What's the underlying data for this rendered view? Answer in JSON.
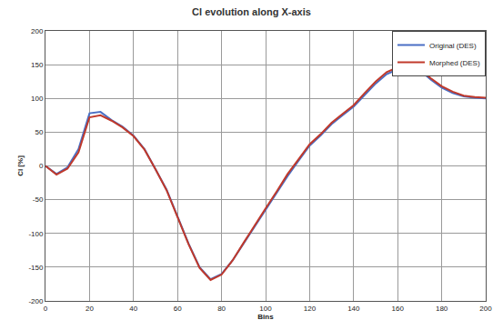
{
  "chart_data": {
    "type": "line",
    "title": "Cl evolution along X-axis",
    "x_label": "Bins",
    "y_label": "Cl [%]",
    "x": [
      0,
      5,
      10,
      15,
      20,
      25,
      30,
      35,
      40,
      45,
      50,
      55,
      60,
      65,
      70,
      75,
      80,
      85,
      90,
      95,
      100,
      105,
      110,
      115,
      120,
      125,
      130,
      135,
      140,
      145,
      150,
      155,
      160,
      165,
      170,
      175,
      180,
      185,
      190,
      195,
      200
    ],
    "series": [
      {
        "name": "Original (DES)",
        "color": "#4a6fc4",
        "values": [
          0,
          -12,
          -2,
          25,
          78,
          80,
          68,
          58,
          45,
          25,
          -5,
          -35,
          -75,
          -115,
          -150,
          -168,
          -160,
          -140,
          -115,
          -90,
          -65,
          -40,
          -15,
          8,
          30,
          45,
          62,
          75,
          88,
          105,
          122,
          136,
          143,
          144,
          142,
          128,
          116,
          108,
          103,
          101,
          100
        ]
      },
      {
        "name": "Morphed (DES)",
        "color": "#c0392b",
        "values": [
          0,
          -13,
          -4,
          20,
          72,
          75,
          67,
          57,
          44,
          24,
          -5,
          -36,
          -76,
          -116,
          -151,
          -169,
          -161,
          -140,
          -114,
          -88,
          -63,
          -38,
          -12,
          10,
          32,
          47,
          64,
          77,
          90,
          108,
          125,
          139,
          146,
          146,
          143,
          130,
          118,
          110,
          104,
          102,
          101
        ]
      }
    ],
    "xlim": [
      0,
      200
    ],
    "xticks": [
      0,
      20,
      40,
      60,
      80,
      100,
      120,
      140,
      160,
      180,
      200
    ],
    "ylim": [
      -200,
      200
    ],
    "yticks": [
      -200,
      -150,
      -100,
      -50,
      0,
      50,
      100,
      150,
      200
    ],
    "grid": true,
    "legend": "upper right"
  }
}
